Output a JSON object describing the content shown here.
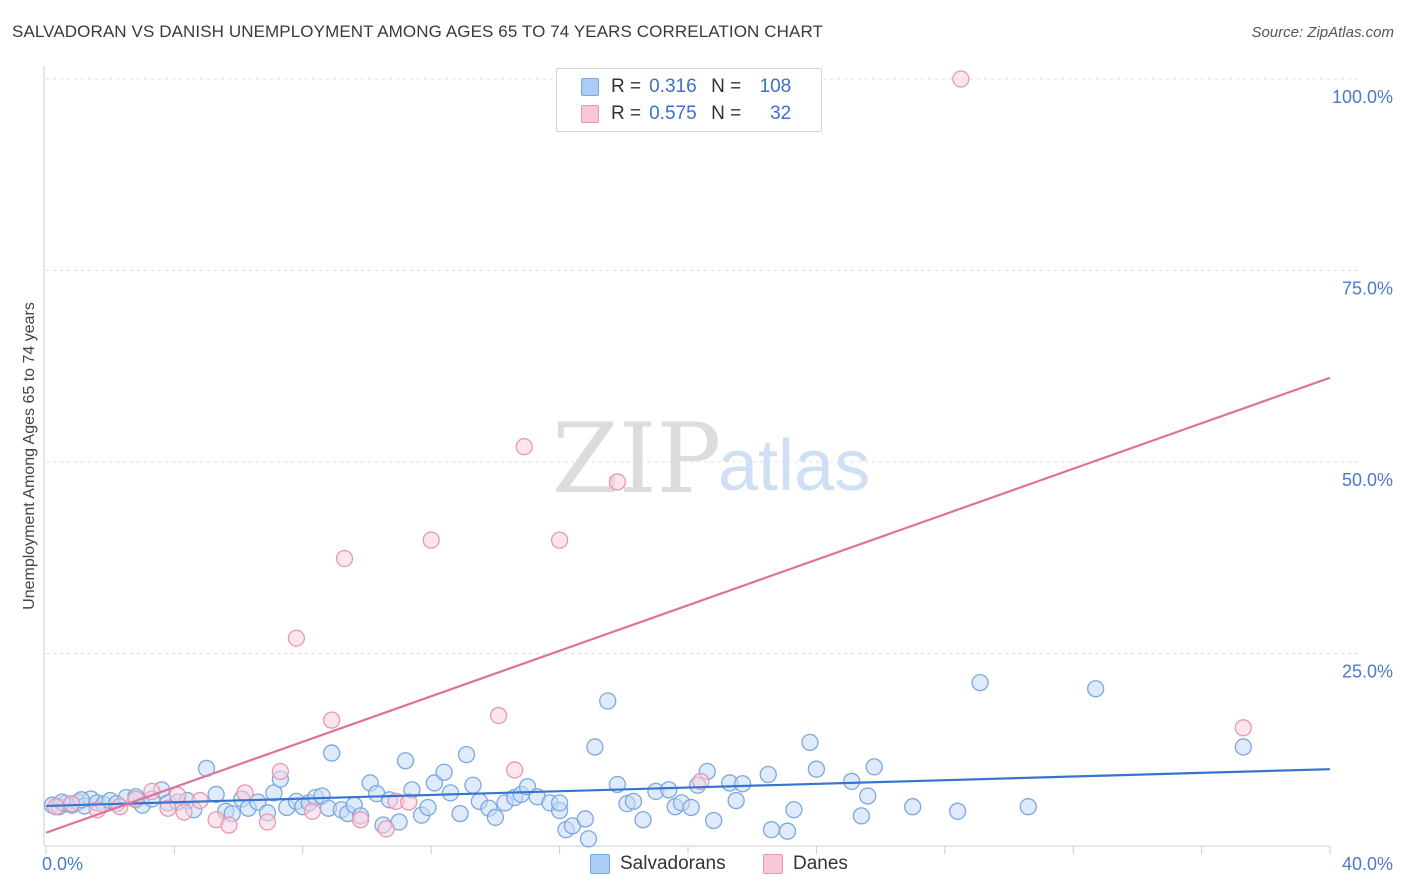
{
  "title": "SALVADORAN VS DANISH UNEMPLOYMENT AMONG AGES 65 TO 74 YEARS CORRELATION CHART",
  "source": "Source: ZipAtlas.com",
  "watermark": {
    "zip": "ZIP",
    "atlas": "atlas"
  },
  "legend": {
    "rows": [
      {
        "r_label": "R =",
        "r_value": "0.316",
        "n_label": "N =",
        "n_value": "108",
        "color": "#aaccf5",
        "border": "#7aa8e0"
      },
      {
        "r_label": "R =",
        "r_value": "0.575",
        "n_label": "N =",
        "n_value": "32",
        "color": "#f9c6d6",
        "border": "#e898b2"
      }
    ]
  },
  "bottom_legend": [
    {
      "label": "Salvadorans",
      "color": "#aaccf5",
      "border": "#7aa8e0"
    },
    {
      "label": "Danes",
      "color": "#f9c6d6",
      "border": "#e898b2"
    }
  ],
  "chart_data": {
    "type": "scatter",
    "title": "SALVADORAN VS DANISH UNEMPLOYMENT AMONG AGES 65 TO 74 YEARS CORRELATION CHART",
    "xlabel": "",
    "ylabel": "Unemployment Among Ages 65 to 74 years",
    "xlim": [
      0,
      40
    ],
    "ylim": [
      0,
      100
    ],
    "x_tick_labels": [
      "0.0%",
      "40.0%"
    ],
    "y_ticks": [
      25,
      50,
      75,
      100
    ],
    "y_tick_labels": [
      "25.0%",
      "50.0%",
      "75.0%",
      "100.0%"
    ],
    "grid": true,
    "series": [
      {
        "name": "Salvadorans",
        "color": "#7aa8e0",
        "fill": "#c5dbf6",
        "trend": {
          "x": [
            0,
            40
          ],
          "y": [
            5.1,
            9.9
          ],
          "color": "#3575d0"
        },
        "points": [
          [
            0.2,
            5.2
          ],
          [
            0.4,
            5.0
          ],
          [
            0.6,
            5.4
          ],
          [
            0.8,
            5.2
          ],
          [
            1.0,
            5.6
          ],
          [
            1.2,
            5.1
          ],
          [
            1.4,
            6.0
          ],
          [
            1.6,
            5.5
          ],
          [
            1.8,
            5.3
          ],
          [
            2.0,
            5.8
          ],
          [
            2.2,
            5.4
          ],
          [
            2.5,
            6.2
          ],
          [
            2.8,
            5.9
          ],
          [
            3.0,
            5.2
          ],
          [
            3.3,
            6.0
          ],
          [
            3.6,
            7.2
          ],
          [
            3.8,
            5.5
          ],
          [
            4.1,
            5.6
          ],
          [
            4.4,
            5.8
          ],
          [
            4.6,
            4.6
          ],
          [
            5.0,
            10.0
          ],
          [
            5.3,
            6.6
          ],
          [
            5.6,
            4.4
          ],
          [
            5.8,
            4.1
          ],
          [
            6.1,
            6.0
          ],
          [
            6.3,
            4.8
          ],
          [
            6.6,
            5.6
          ],
          [
            6.9,
            4.2
          ],
          [
            7.1,
            6.8
          ],
          [
            7.3,
            8.6
          ],
          [
            7.5,
            4.9
          ],
          [
            7.8,
            5.7
          ],
          [
            8.0,
            5.0
          ],
          [
            8.2,
            5.5
          ],
          [
            8.4,
            6.2
          ],
          [
            8.6,
            6.4
          ],
          [
            8.8,
            4.8
          ],
          [
            8.9,
            12.0
          ],
          [
            9.2,
            4.6
          ],
          [
            9.4,
            4.1
          ],
          [
            9.6,
            5.2
          ],
          [
            9.8,
            3.8
          ],
          [
            10.1,
            8.1
          ],
          [
            10.3,
            6.7
          ],
          [
            10.5,
            2.6
          ],
          [
            10.7,
            5.9
          ],
          [
            11.0,
            3.0
          ],
          [
            11.2,
            11.0
          ],
          [
            11.4,
            7.2
          ],
          [
            11.7,
            3.9
          ],
          [
            11.9,
            4.9
          ],
          [
            12.1,
            8.1
          ],
          [
            12.4,
            9.5
          ],
          [
            12.6,
            6.8
          ],
          [
            12.9,
            4.1
          ],
          [
            13.1,
            11.8
          ],
          [
            13.3,
            7.8
          ],
          [
            13.5,
            5.7
          ],
          [
            13.8,
            4.8
          ],
          [
            14.0,
            3.6
          ],
          [
            14.3,
            5.5
          ],
          [
            14.6,
            6.2
          ],
          [
            14.8,
            6.6
          ],
          [
            15.0,
            7.6
          ],
          [
            15.3,
            6.3
          ],
          [
            15.7,
            5.5
          ],
          [
            16.0,
            4.5
          ],
          [
            16.2,
            2.0
          ],
          [
            16.4,
            2.5
          ],
          [
            16.8,
            3.4
          ],
          [
            16.9,
            0.8
          ],
          [
            17.1,
            12.8
          ],
          [
            17.5,
            18.8
          ],
          [
            17.8,
            7.9
          ],
          [
            18.1,
            5.4
          ],
          [
            18.3,
            5.7
          ],
          [
            18.6,
            3.3
          ],
          [
            19.0,
            7.0
          ],
          [
            19.4,
            7.2
          ],
          [
            19.6,
            5.0
          ],
          [
            19.8,
            5.5
          ],
          [
            20.1,
            4.9
          ],
          [
            20.3,
            7.8
          ],
          [
            20.6,
            9.6
          ],
          [
            20.8,
            3.2
          ],
          [
            21.3,
            8.1
          ],
          [
            21.5,
            5.8
          ],
          [
            21.7,
            8.0
          ],
          [
            22.5,
            9.2
          ],
          [
            22.6,
            2.0
          ],
          [
            23.1,
            1.8
          ],
          [
            23.3,
            4.6
          ],
          [
            23.8,
            13.4
          ],
          [
            24.0,
            9.9
          ],
          [
            25.1,
            8.3
          ],
          [
            25.4,
            3.8
          ],
          [
            25.6,
            6.4
          ],
          [
            25.8,
            10.2
          ],
          [
            27.0,
            5.0
          ],
          [
            28.4,
            4.4
          ],
          [
            29.1,
            21.2
          ],
          [
            30.6,
            5.0
          ],
          [
            32.7,
            20.4
          ],
          [
            37.3,
            12.8
          ],
          [
            16.0,
            5.5
          ],
          [
            2.8,
            6.3
          ],
          [
            1.1,
            5.9
          ],
          [
            0.5,
            5.6
          ]
        ]
      },
      {
        "name": "Danes",
        "color": "#e898b2",
        "fill": "#f9d0dd",
        "trend": {
          "x": [
            0,
            40
          ],
          "y": [
            1.6,
            61.0
          ],
          "color": "#e0719a"
        },
        "points": [
          [
            0.3,
            5.0
          ],
          [
            0.8,
            5.4
          ],
          [
            1.6,
            4.6
          ],
          [
            2.3,
            5.0
          ],
          [
            2.8,
            6.0
          ],
          [
            3.3,
            7.0
          ],
          [
            3.8,
            4.8
          ],
          [
            4.1,
            6.5
          ],
          [
            4.3,
            4.3
          ],
          [
            4.8,
            5.8
          ],
          [
            5.3,
            3.3
          ],
          [
            5.7,
            2.6
          ],
          [
            6.2,
            6.8
          ],
          [
            6.9,
            3.0
          ],
          [
            7.3,
            9.6
          ],
          [
            7.8,
            27.0
          ],
          [
            8.3,
            4.4
          ],
          [
            8.9,
            16.3
          ],
          [
            9.3,
            37.4
          ],
          [
            9.8,
            3.3
          ],
          [
            10.6,
            2.1
          ],
          [
            10.9,
            5.7
          ],
          [
            11.3,
            5.6
          ],
          [
            12.0,
            39.8
          ],
          [
            14.1,
            16.9
          ],
          [
            14.6,
            9.8
          ],
          [
            14.9,
            52.0
          ],
          [
            16.0,
            39.8
          ],
          [
            17.8,
            47.4
          ],
          [
            20.4,
            8.3
          ],
          [
            28.5,
            100.0
          ],
          [
            37.3,
            15.3
          ]
        ]
      }
    ]
  }
}
